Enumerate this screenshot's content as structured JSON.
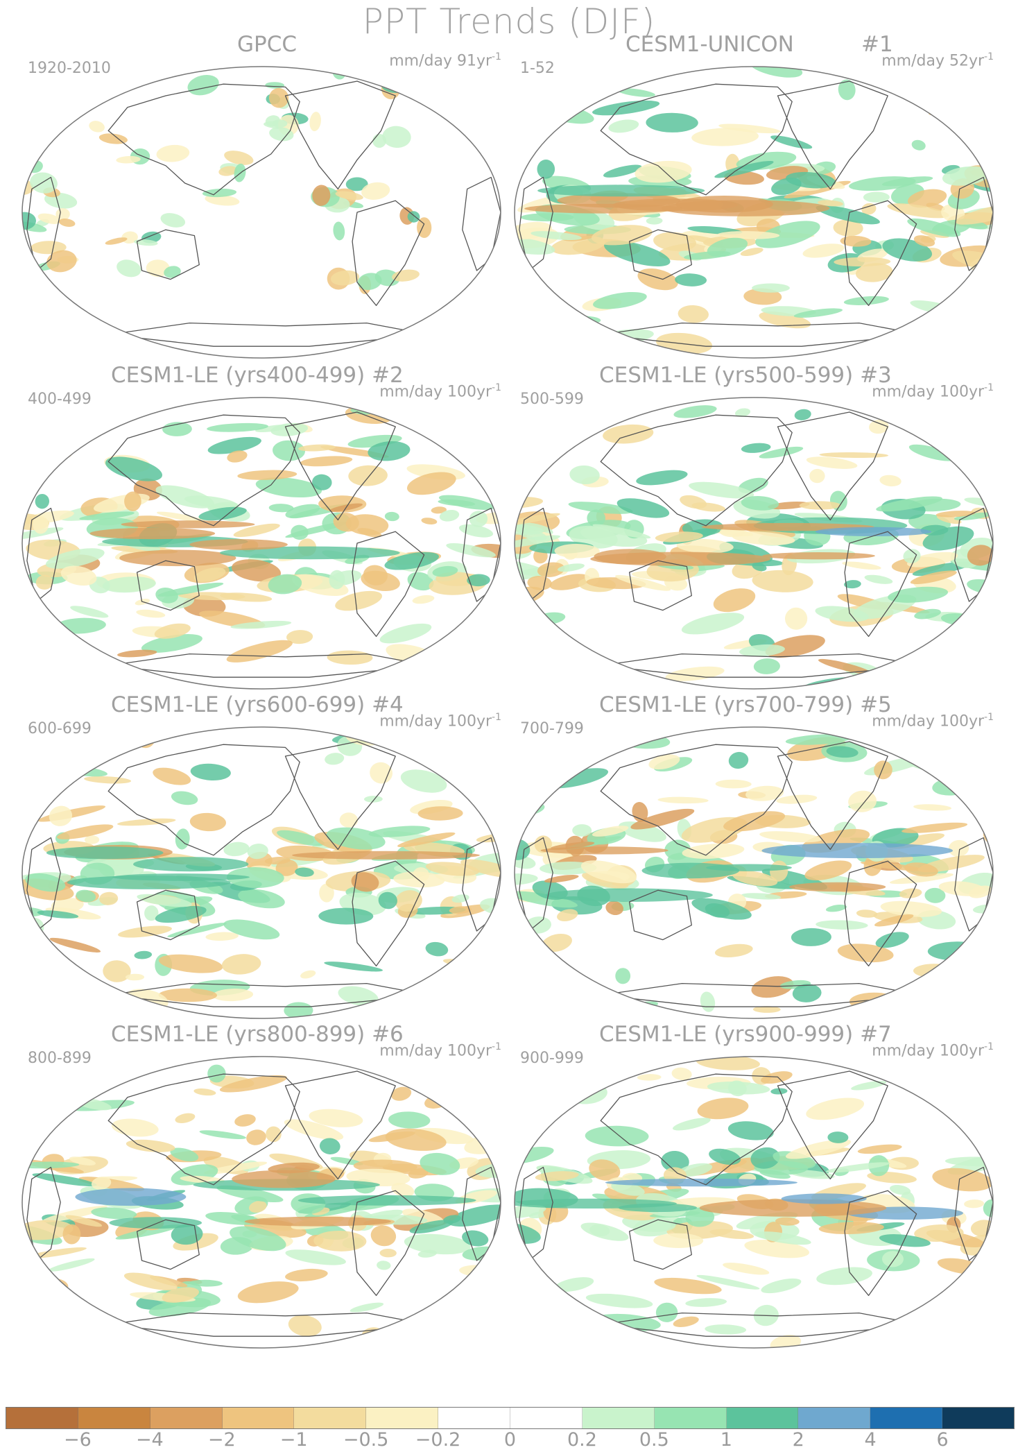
{
  "figure": {
    "title": "PPT Trends (DJF)"
  },
  "panels": [
    {
      "title": "GPCC",
      "num": "",
      "years": "1920-2010",
      "units": "mm/day 91yr",
      "units_exp": "-1"
    },
    {
      "title": "CESM1-UNICON",
      "num": "#1",
      "years": "1-52",
      "units": "mm/day 52yr",
      "units_exp": "-1"
    },
    {
      "title": "CESM1-LE (yrs400-499) #2",
      "num": "",
      "years": "400-499",
      "units": "mm/day 100yr",
      "units_exp": "-1"
    },
    {
      "title": "CESM1-LE (yrs500-599) #3",
      "num": "",
      "years": "500-599",
      "units": "mm/day 100yr",
      "units_exp": "-1"
    },
    {
      "title": "CESM1-LE (yrs600-699) #4",
      "num": "",
      "years": "600-699",
      "units": "mm/day 100yr",
      "units_exp": "-1"
    },
    {
      "title": "CESM1-LE (yrs700-799) #5",
      "num": "",
      "years": "700-799",
      "units": "mm/day 100yr",
      "units_exp": "-1"
    },
    {
      "title": "CESM1-LE (yrs800-899) #6",
      "num": "",
      "years": "800-899",
      "units": "mm/day 100yr",
      "units_exp": "-1"
    },
    {
      "title": "CESM1-LE (yrs900-999) #7",
      "num": "",
      "years": "900-999",
      "units": "mm/day 100yr",
      "units_exp": "-1"
    }
  ],
  "colorbar": {
    "colors": [
      "#b5703a",
      "#c9853f",
      "#dca060",
      "#eec47f",
      "#f3dc9e",
      "#fbf1c3",
      "#ffffff",
      "#ffffff",
      "#c9f3cc",
      "#97e4b2",
      "#5cc39c",
      "#6fa8cf",
      "#1e6fb0",
      "#0f3b5b"
    ],
    "labels": [
      "−6",
      "−4",
      "−2",
      "−1",
      "−0.5",
      "−0.2",
      "0",
      "0.2",
      "0.5",
      "1",
      "2",
      "4",
      "6"
    ]
  }
}
